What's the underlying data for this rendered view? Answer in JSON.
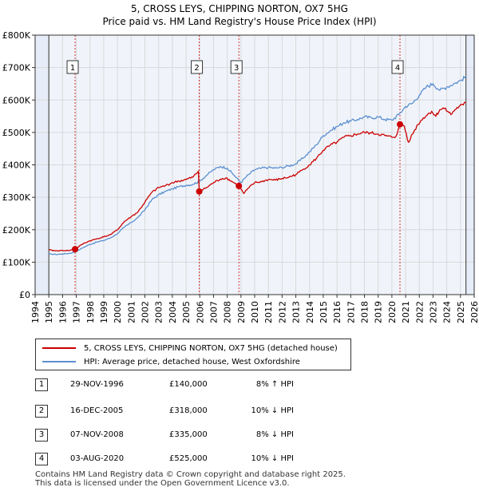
{
  "title_line1": "5, CROSS LEYS, CHIPPING NORTON, OX7 5HG",
  "title_line2": "Price paid vs. HM Land Registry's House Price Index (HPI)",
  "colors": {
    "price": "#cc0000",
    "hpi": "#5b8fd0",
    "grid": "#d8d8d8",
    "plot_bg": "#f0f4fa",
    "shade": "#e6edf8",
    "marker": "#cc0000"
  },
  "chart_data": {
    "type": "line",
    "title": "Price paid vs. HM Land Registry's House Price Index (HPI)",
    "xlabel": "",
    "ylabel": "",
    "xlim": [
      1994,
      2026
    ],
    "ylim": [
      0,
      800000
    ],
    "x_ticks": [
      "1994",
      "1995",
      "1996",
      "1997",
      "1998",
      "1999",
      "2000",
      "2001",
      "2002",
      "2003",
      "2004",
      "2005",
      "2006",
      "2007",
      "2008",
      "2009",
      "2010",
      "2011",
      "2012",
      "2013",
      "2014",
      "2015",
      "2016",
      "2017",
      "2018",
      "2019",
      "2020",
      "2021",
      "2022",
      "2023",
      "2024",
      "2025",
      "2026"
    ],
    "y_ticks": [
      "£0",
      "£100K",
      "£200K",
      "£300K",
      "£400K",
      "£500K",
      "£600K",
      "£700K",
      "£800K"
    ],
    "y_tick_values": [
      0,
      100000,
      200000,
      300000,
      400000,
      500000,
      600000,
      700000,
      800000
    ],
    "grid": true,
    "data_start_year": 1995,
    "data_end_year": 2025.4,
    "series": [
      {
        "name": "5, CROSS LEYS, CHIPPING NORTON, OX7 5HG (detached house)",
        "x": [
          1995,
          1995.5,
          1996,
          1996.5,
          1996.9,
          1997.5,
          1998,
          1998.5,
          1999,
          1999.5,
          2000,
          2000.5,
          2001,
          2001.5,
          2002,
          2002.5,
          2003,
          2003.5,
          2004,
          2004.5,
          2005,
          2005.5,
          2005.9,
          2005.96,
          2006.5,
          2007,
          2007.5,
          2007.9,
          2008.3,
          2008.85,
          2009.2,
          2009.6,
          2010,
          2010.5,
          2011,
          2011.5,
          2012,
          2012.5,
          2013,
          2013.5,
          2014,
          2014.5,
          2015,
          2015.5,
          2016,
          2016.5,
          2017,
          2017.5,
          2018,
          2018.5,
          2019,
          2019.5,
          2020,
          2020.3,
          2020.59,
          2020.9,
          2021.2,
          2021.5,
          2021.9,
          2022.3,
          2022.6,
          2022.9,
          2023.2,
          2023.5,
          2023.9,
          2024.3,
          2024.6,
          2024.9,
          2025.2,
          2025.4
        ],
        "values": [
          138000,
          135000,
          136000,
          136000,
          140000,
          157000,
          166000,
          172000,
          178000,
          185000,
          200000,
          225000,
          240000,
          255000,
          285000,
          315000,
          330000,
          336000,
          345000,
          350000,
          355000,
          362000,
          380000,
          318000,
          330000,
          345000,
          356000,
          360000,
          350000,
          335000,
          312000,
          330000,
          345000,
          348000,
          355000,
          353000,
          358000,
          362000,
          370000,
          385000,
          400000,
          420000,
          445000,
          460000,
          470000,
          485000,
          490000,
          495000,
          500000,
          498000,
          495000,
          490000,
          485000,
          488000,
          525000,
          520000,
          470000,
          495000,
          525000,
          545000,
          555000,
          565000,
          550000,
          570000,
          575000,
          555000,
          570000,
          580000,
          585000,
          592000
        ]
      },
      {
        "name": "HPI: Average price, detached house, West Oxfordshire",
        "x": [
          1995,
          1995.5,
          1996,
          1996.5,
          1997,
          1997.5,
          1998,
          1998.5,
          1999,
          1999.5,
          2000,
          2000.5,
          2001,
          2001.5,
          2002,
          2002.5,
          2003,
          2003.5,
          2004,
          2004.5,
          2005,
          2005.5,
          2006,
          2006.5,
          2007,
          2007.5,
          2008,
          2008.5,
          2009,
          2009.3,
          2009.7,
          2010,
          2010.5,
          2011,
          2011.5,
          2012,
          2012.5,
          2013,
          2013.5,
          2014,
          2014.5,
          2015,
          2015.5,
          2016,
          2016.5,
          2017,
          2017.5,
          2018,
          2018.5,
          2019,
          2019.5,
          2020,
          2020.5,
          2021,
          2021.5,
          2022,
          2022.5,
          2023,
          2023.5,
          2024,
          2024.5,
          2025,
          2025.4
        ],
        "values": [
          125000,
          124000,
          125000,
          127000,
          133000,
          145000,
          155000,
          162000,
          167000,
          175000,
          188000,
          208000,
          222000,
          238000,
          262000,
          292000,
          308000,
          318000,
          326000,
          333000,
          337000,
          340000,
          350000,
          368000,
          385000,
          395000,
          390000,
          368000,
          345000,
          360000,
          375000,
          385000,
          390000,
          392000,
          390000,
          392000,
          397000,
          403000,
          420000,
          440000,
          462000,
          490000,
          505000,
          518000,
          530000,
          535000,
          540000,
          548000,
          545000,
          548000,
          540000,
          538000,
          555000,
          580000,
          590000,
          615000,
          640000,
          650000,
          630000,
          640000,
          650000,
          660000,
          672000
        ]
      }
    ],
    "sales": [
      {
        "label": "1",
        "year": 1996.91,
        "price": 140000
      },
      {
        "label": "2",
        "year": 2005.96,
        "price": 318000
      },
      {
        "label": "3",
        "year": 2008.85,
        "price": 335000
      },
      {
        "label": "4",
        "year": 2020.59,
        "price": 525000
      }
    ],
    "shaded_ranges": [
      [
        1994,
        1995.0
      ],
      [
        2025.4,
        2026
      ]
    ]
  },
  "legend": {
    "price_label": "5, CROSS LEYS, CHIPPING NORTON, OX7 5HG (detached house)",
    "hpi_label": "HPI: Average price, detached house, West Oxfordshire"
  },
  "transactions": [
    {
      "num": "1",
      "date": "29-NOV-1996",
      "price": "£140,000",
      "hpi": "8% ↑ HPI"
    },
    {
      "num": "2",
      "date": "16-DEC-2005",
      "price": "£318,000",
      "hpi": "10% ↓ HPI"
    },
    {
      "num": "3",
      "date": "07-NOV-2008",
      "price": "£335,000",
      "hpi": "8% ↓ HPI"
    },
    {
      "num": "4",
      "date": "03-AUG-2020",
      "price": "£525,000",
      "hpi": "10% ↓ HPI"
    }
  ],
  "footer": {
    "line1": "Contains HM Land Registry data © Crown copyright and database right 2025.",
    "line2": "This data is licensed under the Open Government Licence v3.0."
  }
}
